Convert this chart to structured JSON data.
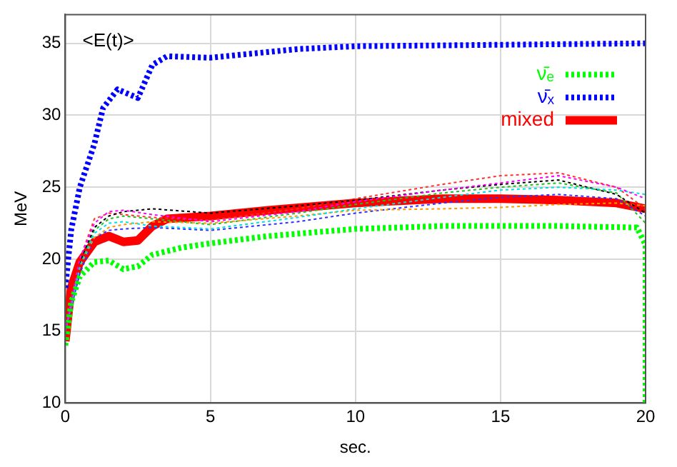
{
  "chart_data": {
    "type": "line",
    "xlabel": "sec.",
    "ylabel": "MeV",
    "annotations": [
      "<E(t)>"
    ],
    "xlim": [
      0,
      20
    ],
    "xticks": [
      0,
      5,
      10,
      15,
      20
    ],
    "ylim": [
      10,
      37
    ],
    "yticks": [
      10,
      15,
      20,
      25,
      30,
      35
    ],
    "grid": true,
    "legend": "top right",
    "marker": "none",
    "series": [
      {
        "color": "#ff00ff",
        "line_style": "dotted",
        "x": [
          0,
          0.5,
          1,
          1.5,
          2,
          3,
          5,
          8,
          10,
          13,
          15,
          17,
          19,
          20
        ],
        "values": [
          15,
          20,
          22.5,
          23.3,
          23.4,
          23.1,
          22.6,
          23.3,
          24,
          24.8,
          25.3,
          25.8,
          25,
          24.2
        ]
      },
      {
        "color": "#00e0e0",
        "line_style": "dotted",
        "x": [
          0,
          0.5,
          1,
          1.5,
          2,
          3,
          5,
          8,
          10,
          13,
          15,
          17,
          19,
          20
        ],
        "values": [
          15,
          19.5,
          21.8,
          22.5,
          22.6,
          22.3,
          22.1,
          22.9,
          23.5,
          24.3,
          24.8,
          25,
          24.8,
          24.5
        ]
      },
      {
        "color": "#000000",
        "line_style": "dotted",
        "x": [
          0,
          0.5,
          1,
          1.5,
          2,
          3,
          5,
          8,
          10,
          13,
          15,
          17,
          19,
          20
        ],
        "values": [
          15,
          19.8,
          22.2,
          23,
          23.3,
          23.5,
          23.2,
          23.7,
          24.1,
          24.8,
          25.2,
          25.5,
          24.5,
          23.2
        ]
      },
      {
        "color": "#ff9900",
        "line_style": "dotted",
        "x": [
          0,
          0.5,
          1,
          1.5,
          2,
          3,
          5,
          8,
          10,
          13,
          15,
          17,
          19,
          20
        ],
        "values": [
          15,
          19.5,
          21.5,
          22.2,
          22.4,
          22.6,
          22.5,
          23,
          23.4,
          23.5,
          23.6,
          23.8,
          23.9,
          23.7
        ]
      },
      {
        "color": "#ff3030",
        "line_style": "dotted",
        "x": [
          0,
          0.5,
          1,
          1.5,
          2,
          3,
          5,
          8,
          10,
          13,
          15,
          17,
          19,
          20
        ],
        "values": [
          15,
          20,
          22.8,
          23.2,
          23.1,
          22.9,
          22.7,
          23.5,
          24.2,
          25.2,
          25.8,
          26,
          25,
          23.5
        ]
      },
      {
        "color": "#3030ff",
        "line_style": "dotted",
        "x": [
          0,
          0.5,
          1,
          1.5,
          2,
          3,
          5,
          8,
          10,
          13,
          15,
          17,
          19,
          20
        ],
        "values": [
          15,
          19,
          21.5,
          22,
          22.1,
          22.2,
          22,
          22.6,
          23.2,
          23.9,
          24.3,
          24.5,
          24.2,
          23
        ]
      },
      {
        "color": "#20c020",
        "line_style": "dotted",
        "x": [
          0,
          0.5,
          1,
          1.5,
          2,
          3,
          5,
          8,
          10,
          13,
          15,
          17,
          19,
          20
        ],
        "values": [
          15,
          19.7,
          22,
          22.8,
          23,
          22.8,
          22.4,
          23.2,
          23.8,
          24.6,
          25,
          25.3,
          24.6,
          22.5
        ]
      },
      {
        "name": "ν̄ₑ",
        "color": "#00ff00",
        "line_style": "dotted",
        "x": [
          0,
          0.2,
          0.5,
          1,
          1.5,
          2,
          2.5,
          3,
          4,
          5,
          7,
          10,
          13,
          17,
          19.7,
          20,
          20
        ],
        "values": [
          14,
          17,
          18.8,
          19.8,
          19.9,
          19.3,
          19.5,
          20.3,
          20.8,
          21.1,
          21.6,
          22.1,
          22.3,
          22.3,
          22.2,
          21,
          10
        ]
      },
      {
        "name": "ν̄ₓ",
        "color": "#0000ff",
        "line_style": "dotted",
        "x": [
          0,
          0.2,
          0.5,
          1,
          1.3,
          1.8,
          2.5,
          3,
          3.5,
          5,
          6,
          8,
          10,
          15,
          20
        ],
        "values": [
          18,
          22,
          25,
          28,
          30.5,
          31.8,
          31.2,
          33.5,
          34.1,
          34,
          34.2,
          34.6,
          34.8,
          34.9,
          35
        ]
      },
      {
        "name": "mixed",
        "color": "#ff0000",
        "line_style": "solid",
        "x": [
          0,
          0.2,
          0.5,
          1,
          1.5,
          2,
          2.5,
          3,
          3.5,
          5,
          7,
          10,
          13,
          15,
          17,
          19,
          20
        ],
        "values": [
          14.3,
          18,
          19.8,
          21.2,
          21.6,
          21.2,
          21.3,
          22.3,
          22.8,
          23,
          23.4,
          23.9,
          24.2,
          24.2,
          24.1,
          23.9,
          23.5
        ]
      }
    ]
  }
}
